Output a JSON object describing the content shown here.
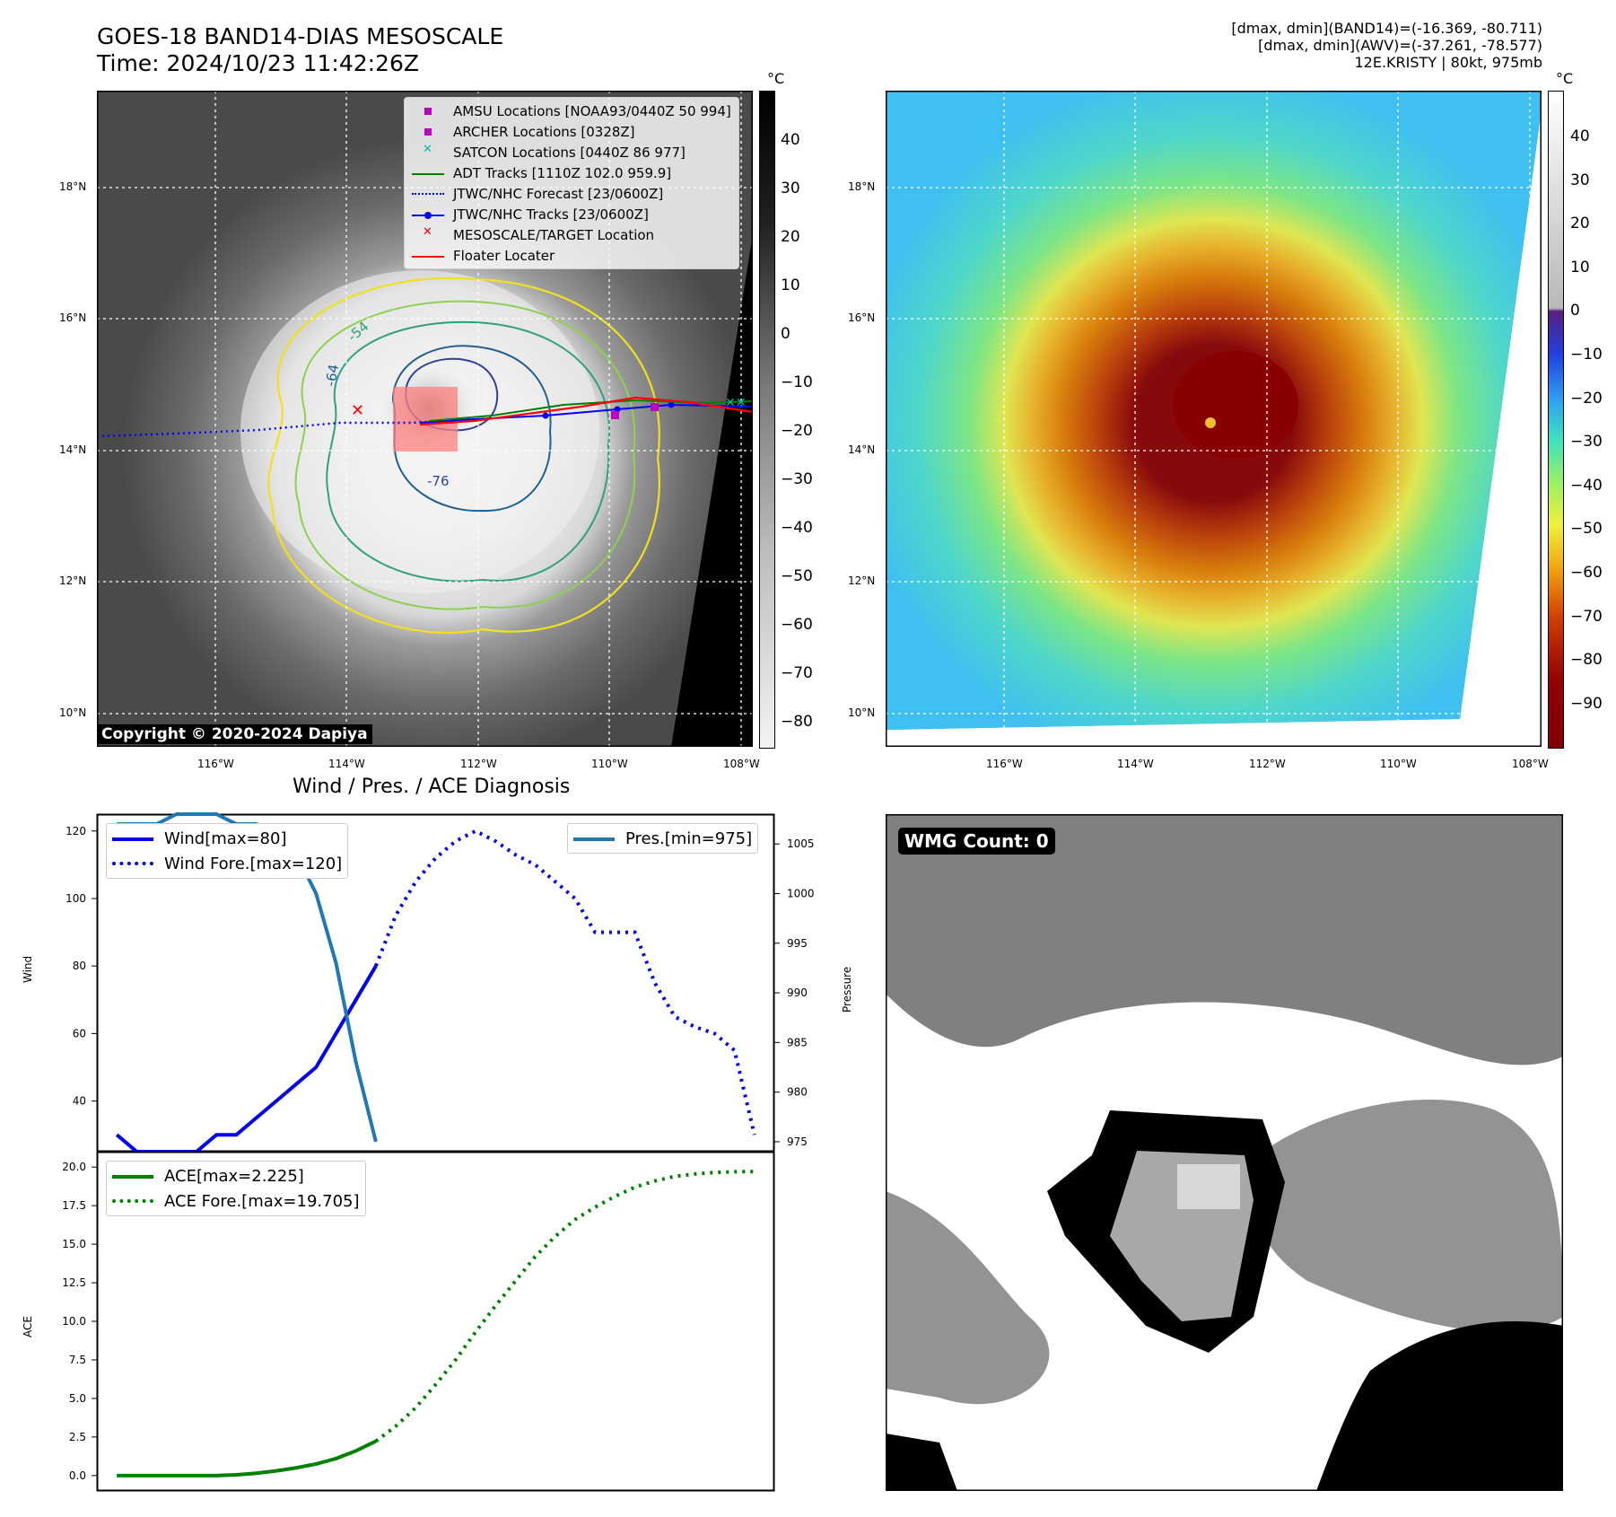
{
  "header": {
    "title_line1": "GOES-18 BAND14-DIAS MESOSCALE",
    "title_line2": "Time: 2024/10/23 11:42:26Z",
    "info_line1": "[dmax, dmin](BAND14)=(-16.369, -80.711)",
    "info_line2": "[dmax, dmin](AWV)=(-37.261, -78.577)",
    "info_line3": "12E.KRISTY | 80kt, 975mb"
  },
  "maps": {
    "lat_labels": [
      "18°N",
      "16°N",
      "14°N",
      "12°N",
      "10°N"
    ],
    "lon_labels": [
      "116°W",
      "114°W",
      "112°W",
      "110°W",
      "108°W"
    ],
    "copyright": "Copyright © 2020-2024 Dapiya",
    "legend": [
      {
        "label": "AMSU Locations [NOAA93/0440Z 50 994]",
        "icon": "square-marker-icon",
        "color": "#c000c0"
      },
      {
        "label": "ARCHER Locations [0328Z]",
        "icon": "square-marker-icon",
        "color": "#c000c0"
      },
      {
        "label": "SATCON Locations [0440Z 86 977]",
        "icon": "x-marker-icon",
        "color": "#00b8b8"
      },
      {
        "label": "ADT Tracks [1110Z 102.0 959.9]",
        "icon": "line-icon",
        "color": "#008000"
      },
      {
        "label": "JTWC/NHC Forecast [23/0600Z]",
        "icon": "dotted-line-icon",
        "color": "#0000ff"
      },
      {
        "label": "JTWC/NHC Tracks [23/0600Z]",
        "icon": "line-dot-icon",
        "color": "#0000ff"
      },
      {
        "label": "MESOSCALE/TARGET Location",
        "icon": "x-marker-icon",
        "color": "#ff0000"
      },
      {
        "label": "Floater Locater",
        "icon": "line-icon",
        "color": "#ff0000"
      }
    ],
    "contour_labels": [
      "-64",
      "-54",
      "-76"
    ],
    "colorbar_left": {
      "unit": "°C",
      "ticks": [
        "40",
        "30",
        "20",
        "10",
        "0",
        "−10",
        "−20",
        "−30",
        "−40",
        "−50",
        "−60",
        "−70",
        "−80"
      ]
    },
    "colorbar_right": {
      "unit": "°C",
      "ticks": [
        "40",
        "30",
        "20",
        "10",
        "0",
        "−10",
        "−20",
        "−30",
        "−40",
        "−50",
        "−60",
        "−70",
        "−80",
        "−90"
      ]
    }
  },
  "diagnosis": {
    "title": "Wind / Pres. / ACE Diagnosis",
    "wmg_label": "WMG Count: 0"
  },
  "chart_data": [
    {
      "type": "line",
      "title": "Wind / Pres. / ACE Diagnosis",
      "ylabel": "Wind",
      "y2label": "Pressure",
      "ylim": [
        25,
        125
      ],
      "y2lim": [
        974,
        1008
      ],
      "yticks": [
        40,
        60,
        80,
        100,
        120
      ],
      "y2ticks": [
        975,
        980,
        985,
        990,
        995,
        1000,
        1005
      ],
      "xlim": [
        -1,
        33
      ],
      "series": [
        {
          "name": "Wind[max=80]",
          "style": "solid",
          "color": "#0000ee",
          "x": [
            0,
            1,
            2,
            3,
            4,
            5,
            6,
            7,
            8,
            9,
            10,
            11,
            12,
            13
          ],
          "values": [
            30,
            25,
            25,
            25,
            25,
            30,
            30,
            35,
            40,
            45,
            50,
            60,
            70,
            80
          ]
        },
        {
          "name": "Wind Fore.[max=120]",
          "style": "dotted",
          "color": "#0000ee",
          "x": [
            13,
            14,
            15,
            16,
            17,
            18,
            19,
            20,
            21,
            22,
            23,
            24,
            25,
            26,
            27,
            28,
            29,
            30,
            31,
            32
          ],
          "values": [
            80,
            95,
            105,
            112,
            117,
            120,
            117,
            113,
            110,
            105,
            100,
            90,
            90,
            90,
            75,
            65,
            62,
            60,
            55,
            30
          ]
        },
        {
          "name": "Pres.[min=975]",
          "style": "solid",
          "color": "#1f77b4",
          "axis": "right",
          "x": [
            0,
            1,
            2,
            3,
            4,
            5,
            6,
            7,
            8,
            9,
            10,
            11,
            12,
            13
          ],
          "values": [
            1007,
            1007,
            1007,
            1008,
            1008,
            1008,
            1007,
            1007,
            1006,
            1004,
            1000,
            993,
            983,
            975
          ]
        }
      ]
    },
    {
      "type": "line",
      "ylabel": "ACE",
      "ylim": [
        -1.0,
        21.0
      ],
      "yticks": [
        0.0,
        2.5,
        5.0,
        7.5,
        10.0,
        12.5,
        15.0,
        17.5,
        20.0
      ],
      "xlim": [
        -1,
        33
      ],
      "series": [
        {
          "name": "ACE[max=2.225]",
          "style": "solid",
          "color": "#008000",
          "x": [
            0,
            1,
            2,
            3,
            4,
            5,
            6,
            7,
            8,
            9,
            10,
            11,
            12,
            13
          ],
          "values": [
            0,
            0,
            0,
            0,
            0,
            0,
            0.05,
            0.15,
            0.3,
            0.5,
            0.75,
            1.1,
            1.6,
            2.225
          ]
        },
        {
          "name": "ACE Fore.[max=19.705]",
          "style": "dotted",
          "color": "#008000",
          "x": [
            13,
            14,
            15,
            16,
            17,
            18,
            19,
            20,
            21,
            22,
            23,
            24,
            25,
            26,
            27,
            28,
            29,
            30,
            31,
            32
          ],
          "values": [
            2.225,
            3.2,
            4.4,
            5.9,
            7.5,
            9.3,
            11.0,
            12.6,
            14.2,
            15.5,
            16.6,
            17.4,
            18.1,
            18.7,
            19.1,
            19.4,
            19.55,
            19.65,
            19.7,
            19.705
          ]
        }
      ]
    }
  ]
}
